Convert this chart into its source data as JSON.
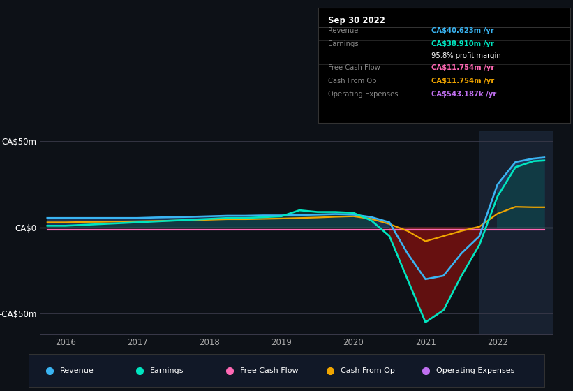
{
  "bg_color": "#0d1117",
  "title": "Sep 30 2022",
  "years": [
    2015.75,
    2016.0,
    2016.25,
    2016.5,
    2016.75,
    2017.0,
    2017.25,
    2017.5,
    2017.75,
    2018.0,
    2018.25,
    2018.5,
    2018.75,
    2019.0,
    2019.25,
    2019.5,
    2019.75,
    2020.0,
    2020.25,
    2020.5,
    2020.75,
    2021.0,
    2021.25,
    2021.5,
    2021.75,
    2022.0,
    2022.25,
    2022.5,
    2022.65
  ],
  "revenue": [
    5.5,
    5.5,
    5.5,
    5.5,
    5.5,
    5.5,
    5.8,
    6.0,
    6.2,
    6.5,
    6.8,
    6.8,
    7.0,
    7.0,
    7.2,
    7.5,
    7.8,
    7.5,
    6.0,
    3.0,
    -15.0,
    -30.0,
    -28.0,
    -15.0,
    -5.0,
    25.0,
    38.0,
    40.0,
    40.623
  ],
  "earnings": [
    1.0,
    1.0,
    1.5,
    2.0,
    2.5,
    3.0,
    3.5,
    4.0,
    4.5,
    5.0,
    5.5,
    5.5,
    6.0,
    6.5,
    10.0,
    9.0,
    9.0,
    8.5,
    4.0,
    -5.0,
    -30.0,
    -55.0,
    -48.0,
    -28.0,
    -10.0,
    18.0,
    35.0,
    38.5,
    38.91
  ],
  "cash_from_op": [
    3.0,
    3.0,
    3.2,
    3.3,
    3.5,
    3.6,
    3.8,
    4.0,
    4.2,
    4.5,
    4.8,
    4.8,
    5.0,
    5.2,
    5.5,
    5.8,
    6.2,
    6.5,
    5.0,
    2.0,
    -2.0,
    -8.0,
    -5.0,
    -2.0,
    0.5,
    8.0,
    12.0,
    11.754,
    11.754
  ],
  "highlight_start": 2021.75,
  "ylim": [
    -62,
    56
  ],
  "yticks": [
    -50,
    0,
    50
  ],
  "ytick_labels": [
    "-CA$50m",
    "CA$0",
    "CA$50m"
  ],
  "xticks": [
    2016,
    2017,
    2018,
    2019,
    2020,
    2021,
    2022
  ],
  "revenue_color": "#3ab4f2",
  "earnings_color": "#00e5c0",
  "fcf_color": "#ff69b4",
  "cashop_color": "#f0a500",
  "opex_color": "#c070f0",
  "text_color": "#aaaaaa",
  "table_label_color": "#888888",
  "table_divider_color": "#333333",
  "box_bg": "#000000",
  "legend_bg": "#111827",
  "table_rows": [
    {
      "label": "Revenue",
      "value": "CA$40.623m /yr",
      "vcolor": "#3ab4f2"
    },
    {
      "label": "Earnings",
      "value": "CA$38.910m /yr",
      "vcolor": "#00e5c0"
    },
    {
      "label": "",
      "value": "95.8% profit margin",
      "vcolor": "#ffffff"
    },
    {
      "label": "Free Cash Flow",
      "value": "CA$11.754m /yr",
      "vcolor": "#ff69b4"
    },
    {
      "label": "Cash From Op",
      "value": "CA$11.754m /yr",
      "vcolor": "#f0a500"
    },
    {
      "label": "Operating Expenses",
      "value": "CA$543.187k /yr",
      "vcolor": "#c070f0"
    }
  ],
  "legend_items": [
    {
      "name": "Revenue",
      "color": "#3ab4f2"
    },
    {
      "name": "Earnings",
      "color": "#00e5c0"
    },
    {
      "name": "Free Cash Flow",
      "color": "#ff69b4"
    },
    {
      "name": "Cash From Op",
      "color": "#f0a500"
    },
    {
      "name": "Operating Expenses",
      "color": "#c070f0"
    }
  ]
}
